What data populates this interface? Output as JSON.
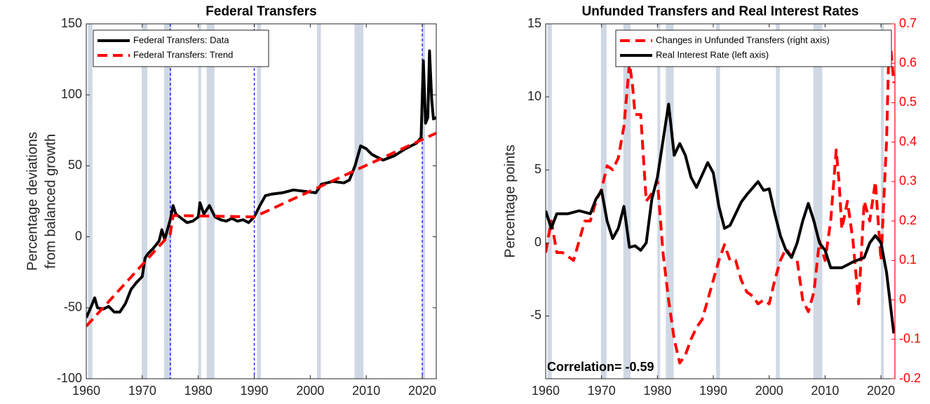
{
  "chart_data": [
    {
      "type": "line",
      "title": "Federal Transfers",
      "ylabel": [
        "Percentage deviations",
        "from balanced growth"
      ],
      "xlim": [
        1960,
        2022.5
      ],
      "xticks": [
        1960,
        1970,
        1980,
        1990,
        2000,
        2010,
        2020
      ],
      "ylim": [
        -100,
        150
      ],
      "yticks": [
        -100,
        -50,
        0,
        50,
        100,
        150
      ],
      "legend": "upper left",
      "recession_color": "#cfd8e4",
      "break_color": "#0000ff",
      "recessions": [
        [
          1960.3,
          1961.1
        ],
        [
          1969.9,
          1970.9
        ],
        [
          1973.9,
          1975.2
        ],
        [
          1980.0,
          1980.5
        ],
        [
          1981.5,
          1982.9
        ],
        [
          1990.5,
          1991.2
        ],
        [
          2001.2,
          2001.9
        ],
        [
          2007.9,
          2009.5
        ],
        [
          2020.0,
          2020.5
        ]
      ],
      "breaks": [
        1975,
        1990,
        2020
      ],
      "series": [
        {
          "name": "Federal Transfers: Data",
          "color": "#000000",
          "style": "solid",
          "x": [
            1960,
            1961,
            1961.5,
            1962,
            1963,
            1964,
            1965,
            1966,
            1967,
            1968,
            1969,
            1970,
            1970.5,
            1971,
            1972,
            1973,
            1973.5,
            1974,
            1975,
            1975.5,
            1976,
            1977,
            1978,
            1979,
            1980,
            1980.3,
            1981,
            1982,
            1983,
            1984,
            1985,
            1986,
            1987,
            1988,
            1989,
            1990,
            1991,
            1992,
            1993,
            1995,
            1997,
            1999,
            2001,
            2002,
            2004,
            2006,
            2007,
            2008,
            2009,
            2010,
            2011,
            2012,
            2013,
            2015,
            2017,
            2019,
            2019.8,
            2020.2,
            2020.6,
            2021,
            2021.3,
            2021.7,
            2022,
            2022.5
          ],
          "values": [
            -57,
            -48,
            -43,
            -50,
            -51,
            -49,
            -53,
            -53,
            -47,
            -37,
            -32,
            -28,
            -15,
            -12,
            -8,
            -3,
            5,
            -2,
            12,
            22,
            16,
            13,
            10,
            11,
            14,
            24,
            16,
            22,
            14,
            12,
            11,
            13,
            11,
            12,
            10,
            14,
            22,
            29,
            30,
            31,
            33,
            32,
            31,
            37,
            39,
            38,
            40,
            50,
            64,
            62,
            58,
            56,
            54,
            57,
            62,
            66,
            70,
            124,
            80,
            84,
            131,
            96,
            83,
            84
          ]
        },
        {
          "name": "Federal Transfers: Trend",
          "color": "#ff0000",
          "style": "dashed",
          "x": [
            1960,
            1975,
            1975.5,
            1990,
            2022.5
          ],
          "values": [
            -63,
            2,
            15,
            14,
            73
          ]
        }
      ]
    },
    {
      "type": "line",
      "title": "Unfunded Transfers and Real Interest Rates",
      "ylabel": [
        "Percentage points"
      ],
      "annotation": "Correlation= -0.59",
      "xlim": [
        1960,
        2022.5
      ],
      "xticks": [
        1960,
        1970,
        1980,
        1990,
        2000,
        2010,
        2020
      ],
      "ylim": [
        -9.3,
        15
      ],
      "yticks": [
        -5,
        0,
        5,
        10,
        15
      ],
      "y2lim": [
        -0.2,
        0.7
      ],
      "y2ticks": [
        -0.2,
        -0.1,
        0,
        0.1,
        0.2,
        0.3,
        0.4,
        0.5,
        0.6,
        0.7
      ],
      "y2color": "#ff0000",
      "legend": "upper right",
      "recession_color": "#cfd8e4",
      "recessions": [
        [
          1960.3,
          1961.1
        ],
        [
          1969.9,
          1970.9
        ],
        [
          1973.9,
          1975.2
        ],
        [
          1980.0,
          1980.5
        ],
        [
          1981.5,
          1982.9
        ],
        [
          1990.5,
          1991.2
        ],
        [
          2001.2,
          2001.9
        ],
        [
          2007.9,
          2009.5
        ],
        [
          2020.0,
          2020.5
        ]
      ],
      "series": [
        {
          "name": "Changes in Unfunded Transfers (right axis)",
          "color": "#ff0000",
          "style": "dashed",
          "axis": "y2",
          "x": [
            1960,
            1961,
            1962,
            1963,
            1964,
            1965,
            1966,
            1967,
            1968,
            1969,
            1970,
            1971,
            1972,
            1973,
            1974,
            1975,
            1975.5,
            1976,
            1977,
            1978,
            1979,
            1980,
            1981,
            1982,
            1983,
            1984,
            1985,
            1986,
            1987,
            1988,
            1989,
            1990,
            1991,
            1992,
            1993,
            1994,
            1995,
            1996,
            1997,
            1998,
            1999,
            2000,
            2001,
            2002,
            2003,
            2004,
            2005,
            2006,
            2007,
            2008,
            2009,
            2010,
            2011,
            2012,
            2012.5,
            2013,
            2014,
            2015,
            2016,
            2017,
            2018,
            2019,
            2020,
            2021,
            2021.5,
            2022.3
          ],
          "values": [
            0.12,
            0.2,
            0.12,
            0.12,
            0.11,
            0.1,
            0.15,
            0.2,
            0.2,
            0.25,
            0.28,
            0.34,
            0.33,
            0.36,
            0.44,
            0.6,
            0.55,
            0.47,
            0.47,
            0.25,
            0.27,
            0.3,
            0.12,
            0,
            -0.1,
            -0.16,
            -0.14,
            -0.1,
            -0.07,
            -0.05,
            0,
            0.05,
            0.1,
            0.14,
            0.1,
            0.1,
            0.05,
            0.02,
            0.01,
            -0.01,
            0,
            -0.01,
            0.05,
            0.1,
            0.13,
            0.11,
            0.1,
            0,
            -0.03,
            0.02,
            0.15,
            0.1,
            0.2,
            0.38,
            0.3,
            0.18,
            0.25,
            0.15,
            -0.01,
            0.25,
            0.2,
            0.3,
            0.1,
            0.4,
            0.68,
            0.55
          ]
        },
        {
          "name": "Real Interest Rate (left axis)",
          "color": "#000000",
          "style": "solid",
          "x": [
            1960,
            1961,
            1962,
            1964,
            1966,
            1968,
            1969,
            1970,
            1971,
            1972,
            1973,
            1974,
            1975,
            1976,
            1977,
            1978,
            1979,
            1980,
            1981,
            1982,
            1983,
            1984,
            1985,
            1986,
            1987,
            1989,
            1990,
            1991,
            1992,
            1993,
            1995,
            1996,
            1998,
            1999,
            2000,
            2001,
            2002,
            2003,
            2004,
            2005,
            2006,
            2007,
            2008,
            2009,
            2010,
            2011,
            2013,
            2014,
            2015,
            2017,
            2018,
            2019,
            2020,
            2021,
            2022.3
          ],
          "values": [
            2.2,
            1,
            2,
            2,
            2.2,
            2,
            3,
            3.6,
            1.5,
            0.3,
            1,
            2.5,
            -0.3,
            -0.2,
            -0.5,
            0,
            3,
            4.5,
            7,
            9.5,
            6,
            6.8,
            6,
            4.5,
            3.8,
            5.5,
            4.8,
            2.5,
            1,
            1.2,
            2.8,
            3.3,
            4.2,
            3.6,
            3.7,
            2,
            0.5,
            -0.5,
            -1,
            0,
            1.5,
            2.7,
            1.5,
            0,
            -0.5,
            -1.7,
            -1.7,
            -1.5,
            -1.3,
            -1,
            0,
            0.5,
            0,
            -2,
            -6.2
          ]
        }
      ]
    }
  ]
}
